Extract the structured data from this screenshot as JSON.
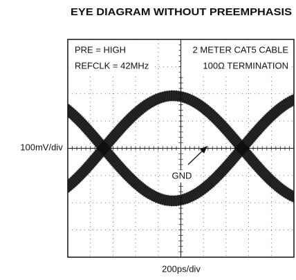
{
  "chart_data": {
    "type": "eye",
    "title": "EYE DIAGRAM WITHOUT PREEMPHASIS",
    "x_label": "200ps/div",
    "y_label": "100mV/div",
    "annotations": [
      "PRE = HIGH",
      "REFCLK = 42MHz",
      "2 METER CAT5 CABLE",
      "100Ω TERMINATION",
      "GND"
    ]
  }
}
